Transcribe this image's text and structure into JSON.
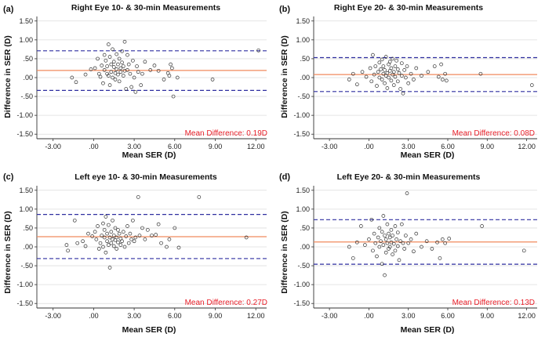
{
  "colors": {
    "mean_line": "#f08a5d",
    "limit_line": "#2f2fa0",
    "annotation": "#e8202a",
    "grid": "#dcdcdc"
  },
  "chart_data": [
    {
      "type": "scatter",
      "panel_label": "(a)",
      "title": "Right Eye 10- & 30-min Measurements",
      "xlabel": "Mean SER (D)",
      "ylabel": "Difference in SER (D)",
      "xlim": [
        -4.2,
        12.8
      ],
      "ylim": [
        -1.62,
        1.62
      ],
      "xticks": [
        -3,
        0,
        3,
        6,
        9,
        12
      ],
      "xtick_labels": [
        "-3.00",
        ".00",
        "3.00",
        "6.00",
        "9.00",
        "12.00"
      ],
      "yticks": [
        1.5,
        1.0,
        0.5,
        0.0,
        -0.5,
        -1.0,
        -1.5
      ],
      "ytick_labels": [
        "1.50",
        "1.00",
        ".50",
        ".00",
        "-.50",
        "-1.00",
        "-1.50"
      ],
      "mean_difference": 0.19,
      "upper_loa": 0.71,
      "lower_loa": -0.34,
      "annotation": "Mean Difference: 0.19D",
      "points": [
        [
          -1.6,
          0.0
        ],
        [
          -1.3,
          -0.12
        ],
        [
          -0.6,
          0.08
        ],
        [
          -0.2,
          0.22
        ],
        [
          0.1,
          0.25
        ],
        [
          0.3,
          0.5
        ],
        [
          0.4,
          0.1
        ],
        [
          0.5,
          0.02
        ],
        [
          0.6,
          0.32
        ],
        [
          0.7,
          -0.15
        ],
        [
          0.8,
          0.6
        ],
        [
          0.8,
          0.2
        ],
        [
          0.9,
          0.45
        ],
        [
          1.0,
          0.1
        ],
        [
          1.0,
          0.3
        ],
        [
          1.1,
          0.88
        ],
        [
          1.1,
          0.05
        ],
        [
          1.2,
          0.55
        ],
        [
          1.2,
          -0.2
        ],
        [
          1.3,
          0.35
        ],
        [
          1.3,
          0.15
        ],
        [
          1.4,
          0.75
        ],
        [
          1.4,
          0.0
        ],
        [
          1.5,
          0.28
        ],
        [
          1.5,
          0.42
        ],
        [
          1.6,
          0.12
        ],
        [
          1.6,
          -0.05
        ],
        [
          1.7,
          0.62
        ],
        [
          1.7,
          0.22
        ],
        [
          1.8,
          0.35
        ],
        [
          1.8,
          0.08
        ],
        [
          1.9,
          0.5
        ],
        [
          1.9,
          -0.1
        ],
        [
          2.0,
          0.25
        ],
        [
          2.0,
          0.15
        ],
        [
          2.1,
          0.7
        ],
        [
          2.1,
          0.4
        ],
        [
          2.2,
          0.05
        ],
        [
          2.2,
          0.3
        ],
        [
          2.3,
          0.95
        ],
        [
          2.3,
          0.18
        ],
        [
          2.4,
          -0.3
        ],
        [
          2.5,
          0.2
        ],
        [
          2.5,
          0.6
        ],
        [
          2.6,
          0.35
        ],
        [
          2.7,
          0.1
        ],
        [
          2.8,
          -0.25
        ],
        [
          2.9,
          0.45
        ],
        [
          3.0,
          0.0
        ],
        [
          3.1,
          -0.38
        ],
        [
          3.2,
          0.3
        ],
        [
          3.3,
          0.15
        ],
        [
          3.5,
          -0.2
        ],
        [
          3.6,
          0.1
        ],
        [
          3.8,
          0.42
        ],
        [
          4.2,
          0.2
        ],
        [
          4.5,
          0.32
        ],
        [
          4.8,
          0.18
        ],
        [
          5.2,
          -0.05
        ],
        [
          5.5,
          0.12
        ],
        [
          5.6,
          0.05
        ],
        [
          5.7,
          0.35
        ],
        [
          5.8,
          0.25
        ],
        [
          5.9,
          -0.5
        ],
        [
          6.2,
          0.0
        ],
        [
          8.8,
          -0.05
        ],
        [
          12.2,
          0.72
        ]
      ]
    },
    {
      "type": "scatter",
      "panel_label": "(b)",
      "title": "Right Eye 20- & 30-min Measurements",
      "xlabel": "Mean SER (D)",
      "ylabel": "Difference in SER (D)",
      "xlim": [
        -4.2,
        12.8
      ],
      "ylim": [
        -1.62,
        1.62
      ],
      "xticks": [
        -3,
        0,
        3,
        6,
        9,
        12
      ],
      "xtick_labels": [
        "-3.00",
        ".00",
        "3.00",
        "6.00",
        "9.00",
        "12.00"
      ],
      "yticks": [
        1.5,
        1.0,
        0.5,
        0.0,
        -0.5,
        -1.0,
        -1.5
      ],
      "ytick_labels": [
        "1.50",
        "1.00",
        ".50",
        ".00",
        "-.50",
        "-1.00",
        "-1.50"
      ],
      "mean_difference": 0.08,
      "upper_loa": 0.53,
      "lower_loa": -0.37,
      "annotation": "Mean Difference: 0.08D",
      "points": [
        [
          -1.5,
          -0.05
        ],
        [
          -1.2,
          0.1
        ],
        [
          -0.9,
          -0.18
        ],
        [
          -0.5,
          0.15
        ],
        [
          -0.2,
          0.02
        ],
        [
          0.1,
          0.25
        ],
        [
          0.2,
          -0.1
        ],
        [
          0.3,
          0.6
        ],
        [
          0.4,
          0.08
        ],
        [
          0.5,
          0.3
        ],
        [
          0.6,
          -0.22
        ],
        [
          0.7,
          0.15
        ],
        [
          0.8,
          0.4
        ],
        [
          0.8,
          0.0
        ],
        [
          0.9,
          0.22
        ],
        [
          1.0,
          -0.05
        ],
        [
          1.0,
          0.48
        ],
        [
          1.1,
          0.1
        ],
        [
          1.1,
          0.3
        ],
        [
          1.2,
          -0.15
        ],
        [
          1.2,
          0.2
        ],
        [
          1.3,
          0.05
        ],
        [
          1.3,
          0.55
        ],
        [
          1.4,
          0.12
        ],
        [
          1.4,
          -0.28
        ],
        [
          1.5,
          0.35
        ],
        [
          1.5,
          0.0
        ],
        [
          1.6,
          0.18
        ],
        [
          1.6,
          0.42
        ],
        [
          1.7,
          -0.08
        ],
        [
          1.7,
          0.25
        ],
        [
          1.8,
          0.08
        ],
        [
          1.8,
          0.5
        ],
        [
          1.9,
          -0.2
        ],
        [
          1.9,
          0.15
        ],
        [
          2.0,
          0.3
        ],
        [
          2.0,
          0.02
        ],
        [
          2.1,
          0.45
        ],
        [
          2.2,
          -0.1
        ],
        [
          2.2,
          0.22
        ],
        [
          2.3,
          0.12
        ],
        [
          2.4,
          -0.3
        ],
        [
          2.5,
          0.38
        ],
        [
          2.5,
          0.05
        ],
        [
          2.6,
          -0.42
        ],
        [
          2.7,
          0.2
        ],
        [
          2.8,
          0.0
        ],
        [
          2.9,
          0.3
        ],
        [
          3.0,
          -0.15
        ],
        [
          3.2,
          0.1
        ],
        [
          3.4,
          -0.05
        ],
        [
          3.6,
          0.25
        ],
        [
          4.0,
          0.05
        ],
        [
          4.5,
          0.15
        ],
        [
          5.0,
          0.3
        ],
        [
          5.3,
          0.02
        ],
        [
          5.5,
          0.35
        ],
        [
          5.6,
          -0.05
        ],
        [
          5.8,
          0.1
        ],
        [
          5.9,
          -0.08
        ],
        [
          8.5,
          0.1
        ],
        [
          12.4,
          -0.2
        ]
      ]
    },
    {
      "type": "scatter",
      "panel_label": "(c)",
      "title": "Left eye 10- & 30-min Measurements",
      "xlabel": "Mean SER (D)",
      "ylabel": "Difference in SER (D)",
      "xlim": [
        -4.2,
        12.8
      ],
      "ylim": [
        -1.62,
        1.62
      ],
      "xticks": [
        -3,
        0,
        3,
        6,
        9,
        12
      ],
      "xtick_labels": [
        "-3.00",
        ".00",
        "3.00",
        "6.00",
        "9.00",
        "12.00"
      ],
      "yticks": [
        1.5,
        1.0,
        0.5,
        0.0,
        -0.5,
        -1.0,
        -1.5
      ],
      "ytick_labels": [
        "1.50",
        "1.00",
        ".50",
        ".00",
        "-.50",
        "-1.00",
        "-1.50"
      ],
      "mean_difference": 0.27,
      "upper_loa": 0.86,
      "lower_loa": -0.31,
      "annotation": "Mean Difference: 0.27D",
      "points": [
        [
          -2.0,
          0.05
        ],
        [
          -1.9,
          -0.1
        ],
        [
          -1.4,
          0.7
        ],
        [
          -1.2,
          0.1
        ],
        [
          -0.8,
          0.15
        ],
        [
          -0.6,
          0.02
        ],
        [
          -0.4,
          0.35
        ],
        [
          -0.1,
          0.28
        ],
        [
          0.1,
          0.4
        ],
        [
          0.2,
          0.2
        ],
        [
          0.3,
          0.55
        ],
        [
          0.4,
          -0.05
        ],
        [
          0.5,
          0.1
        ],
        [
          0.6,
          0.3
        ],
        [
          0.7,
          0.62
        ],
        [
          0.7,
          0.0
        ],
        [
          0.8,
          0.25
        ],
        [
          0.8,
          0.45
        ],
        [
          0.9,
          -0.15
        ],
        [
          0.9,
          0.8
        ],
        [
          1.0,
          0.15
        ],
        [
          1.0,
          0.35
        ],
        [
          1.1,
          0.58
        ],
        [
          1.1,
          0.05
        ],
        [
          1.2,
          -0.55
        ],
        [
          1.2,
          0.25
        ],
        [
          1.3,
          0.4
        ],
        [
          1.3,
          0.1
        ],
        [
          1.4,
          0.7
        ],
        [
          1.4,
          0.2
        ],
        [
          1.5,
          0.3
        ],
        [
          1.5,
          0.02
        ],
        [
          1.6,
          0.5
        ],
        [
          1.6,
          0.18
        ],
        [
          1.7,
          0.25
        ],
        [
          1.7,
          -0.05
        ],
        [
          1.8,
          0.45
        ],
        [
          1.8,
          0.12
        ],
        [
          1.9,
          0.35
        ],
        [
          2.0,
          0.05
        ],
        [
          2.0,
          0.22
        ],
        [
          2.1,
          0.15
        ],
        [
          2.2,
          0.4
        ],
        [
          2.3,
          0.0
        ],
        [
          2.4,
          0.28
        ],
        [
          2.5,
          0.55
        ],
        [
          2.6,
          0.1
        ],
        [
          2.7,
          0.35
        ],
        [
          2.8,
          0.2
        ],
        [
          2.9,
          0.7
        ],
        [
          3.0,
          0.15
        ],
        [
          3.1,
          0.25
        ],
        [
          3.3,
          1.32
        ],
        [
          3.4,
          0.3
        ],
        [
          3.6,
          0.5
        ],
        [
          3.8,
          0.2
        ],
        [
          4.0,
          0.45
        ],
        [
          4.3,
          0.3
        ],
        [
          4.6,
          0.32
        ],
        [
          4.8,
          0.6
        ],
        [
          5.0,
          0.1
        ],
        [
          5.4,
          0.0
        ],
        [
          5.6,
          0.2
        ],
        [
          6.0,
          0.5
        ],
        [
          6.3,
          -0.02
        ],
        [
          7.8,
          1.32
        ],
        [
          11.3,
          0.25
        ]
      ]
    },
    {
      "type": "scatter",
      "panel_label": "(d)",
      "title": "Left Eye 20- & 30-min Measurements",
      "xlabel": "Mean SER (D)",
      "ylabel": "Difference in SER (D)",
      "xlim": [
        -4.2,
        12.8
      ],
      "ylim": [
        -1.62,
        1.62
      ],
      "xticks": [
        -3,
        0,
        3,
        6,
        9,
        12
      ],
      "xtick_labels": [
        "-3.00",
        ".00",
        "3.00",
        "6.00",
        "9.00",
        "12.00"
      ],
      "yticks": [
        1.5,
        1.0,
        0.5,
        0.0,
        -0.5,
        -1.0,
        -1.5
      ],
      "ytick_labels": [
        "1.50",
        "1.00",
        ".50",
        ".00",
        "-.50",
        "-1.00",
        "-1.50"
      ],
      "mean_difference": 0.13,
      "upper_loa": 0.72,
      "lower_loa": -0.46,
      "annotation": "Mean Difference: 0.13D",
      "points": [
        [
          -1.5,
          0.0
        ],
        [
          -1.2,
          -0.3
        ],
        [
          -0.9,
          0.12
        ],
        [
          -0.6,
          0.55
        ],
        [
          -0.3,
          0.05
        ],
        [
          0.0,
          0.2
        ],
        [
          0.2,
          0.72
        ],
        [
          0.3,
          -0.1
        ],
        [
          0.4,
          0.35
        ],
        [
          0.5,
          0.1
        ],
        [
          0.6,
          -0.25
        ],
        [
          0.7,
          0.25
        ],
        [
          0.8,
          0.5
        ],
        [
          0.8,
          0.0
        ],
        [
          0.9,
          0.15
        ],
        [
          1.0,
          -0.45
        ],
        [
          1.0,
          0.4
        ],
        [
          1.1,
          0.82
        ],
        [
          1.1,
          0.05
        ],
        [
          1.2,
          -0.75
        ],
        [
          1.2,
          0.3
        ],
        [
          1.3,
          0.2
        ],
        [
          1.3,
          -0.15
        ],
        [
          1.4,
          0.6
        ],
        [
          1.4,
          0.1
        ],
        [
          1.5,
          0.35
        ],
        [
          1.5,
          -0.05
        ],
        [
          1.6,
          0.25
        ],
        [
          1.6,
          0.0
        ],
        [
          1.7,
          0.45
        ],
        [
          1.7,
          0.12
        ],
        [
          1.8,
          -0.2
        ],
        [
          1.8,
          0.3
        ],
        [
          1.9,
          0.08
        ],
        [
          2.0,
          0.55
        ],
        [
          2.0,
          -0.1
        ],
        [
          2.1,
          0.2
        ],
        [
          2.2,
          0.38
        ],
        [
          2.2,
          0.02
        ],
        [
          2.3,
          -0.35
        ],
        [
          2.4,
          0.15
        ],
        [
          2.5,
          0.6
        ],
        [
          2.6,
          0.1
        ],
        [
          2.7,
          -0.05
        ],
        [
          2.8,
          0.3
        ],
        [
          2.9,
          1.42
        ],
        [
          3.0,
          0.1
        ],
        [
          3.2,
          0.2
        ],
        [
          3.4,
          -0.12
        ],
        [
          3.6,
          0.35
        ],
        [
          4.0,
          0.0
        ],
        [
          4.4,
          0.15
        ],
        [
          4.8,
          -0.05
        ],
        [
          5.2,
          0.12
        ],
        [
          5.4,
          -0.3
        ],
        [
          5.6,
          0.2
        ],
        [
          5.8,
          0.1
        ],
        [
          6.1,
          0.22
        ],
        [
          8.6,
          0.55
        ],
        [
          11.8,
          -0.1
        ]
      ]
    }
  ]
}
